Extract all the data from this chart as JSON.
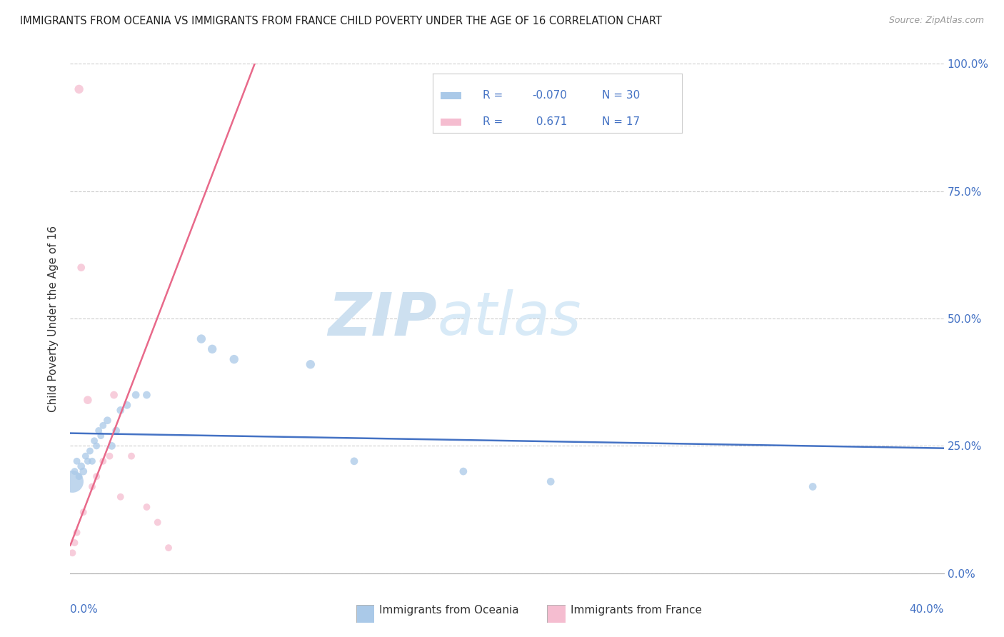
{
  "title": "IMMIGRANTS FROM OCEANIA VS IMMIGRANTS FROM FRANCE CHILD POVERTY UNDER THE AGE OF 16 CORRELATION CHART",
  "source": "Source: ZipAtlas.com",
  "ylabel": "Child Poverty Under the Age of 16",
  "legend_label1": "Immigrants from Oceania",
  "legend_label2": "Immigrants from France",
  "R_oceania": -0.07,
  "N_oceania": 30,
  "R_france": 0.671,
  "N_france": 17,
  "color_oceania": "#aac9e8",
  "color_france": "#f5bdd0",
  "line_color_oceania": "#4472c4",
  "line_color_france": "#e8698a",
  "background_color": "#ffffff",
  "oceania_x": [
    0.001,
    0.002,
    0.003,
    0.004,
    0.005,
    0.006,
    0.007,
    0.008,
    0.009,
    0.01,
    0.011,
    0.012,
    0.013,
    0.014,
    0.015,
    0.017,
    0.019,
    0.021,
    0.023,
    0.026,
    0.03,
    0.035,
    0.06,
    0.065,
    0.075,
    0.11,
    0.13,
    0.18,
    0.22,
    0.34
  ],
  "oceania_y": [
    0.18,
    0.2,
    0.22,
    0.19,
    0.21,
    0.2,
    0.23,
    0.22,
    0.24,
    0.22,
    0.26,
    0.25,
    0.28,
    0.27,
    0.29,
    0.3,
    0.25,
    0.28,
    0.32,
    0.33,
    0.35,
    0.35,
    0.46,
    0.44,
    0.42,
    0.41,
    0.22,
    0.2,
    0.18,
    0.17
  ],
  "oceania_size": [
    500,
    50,
    50,
    50,
    60,
    60,
    50,
    50,
    50,
    50,
    50,
    50,
    50,
    50,
    50,
    60,
    60,
    60,
    60,
    60,
    60,
    60,
    80,
    80,
    80,
    80,
    60,
    60,
    60,
    60
  ],
  "france_x": [
    0.001,
    0.002,
    0.003,
    0.004,
    0.005,
    0.006,
    0.008,
    0.01,
    0.012,
    0.015,
    0.018,
    0.02,
    0.023,
    0.028,
    0.035,
    0.04,
    0.045
  ],
  "france_y": [
    0.04,
    0.06,
    0.08,
    0.95,
    0.6,
    0.12,
    0.34,
    0.17,
    0.19,
    0.22,
    0.23,
    0.35,
    0.15,
    0.23,
    0.13,
    0.1,
    0.05
  ],
  "france_size": [
    50,
    50,
    50,
    80,
    60,
    50,
    70,
    50,
    50,
    50,
    50,
    60,
    50,
    50,
    50,
    50,
    50
  ],
  "xlim": [
    0.0,
    0.4
  ],
  "ylim": [
    0.0,
    1.0
  ],
  "ytick_vals": [
    0.0,
    0.25,
    0.5,
    0.75,
    1.0
  ],
  "ytick_labels": [
    "0.0%",
    "25.0%",
    "50.0%",
    "75.0%",
    "100.0%"
  ],
  "xtick_minor": [
    0.0,
    0.1,
    0.2,
    0.3,
    0.4
  ]
}
